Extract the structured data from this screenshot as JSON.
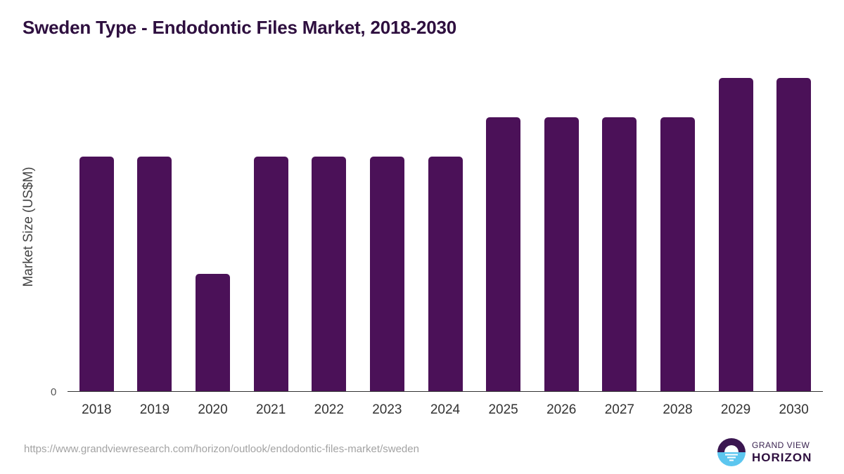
{
  "title": "Sweden Type - Endodontic Files Market, 2018-2030",
  "yaxis": {
    "label": "Market Size (US$M)",
    "zero_tick": "0"
  },
  "footer": {
    "url": "https://www.grandviewresearch.com/horizon/outlook/endodontic-files-market/sweden"
  },
  "logo": {
    "line1": "GRAND VIEW",
    "line2": "HORIZON",
    "dark": "#3a1650",
    "light": "#5cc6ef"
  },
  "colors": {
    "bar": "#4b1158",
    "title": "#2e0f3f"
  },
  "chart_data": {
    "type": "bar",
    "title": "Sweden Type - Endodontic Files Market, 2018-2030",
    "xlabel": "",
    "ylabel": "Market Size (US$M)",
    "categories": [
      "2018",
      "2019",
      "2020",
      "2021",
      "2022",
      "2023",
      "2024",
      "2025",
      "2026",
      "2027",
      "2028",
      "2029",
      "2030"
    ],
    "values": [
      0.6,
      0.6,
      0.3,
      0.6,
      0.6,
      0.6,
      0.6,
      0.7,
      0.7,
      0.7,
      0.7,
      0.8,
      0.8
    ],
    "ylim": [
      0,
      0.856
    ],
    "grid": false,
    "legend": null,
    "note": "Values are relative estimates; y-axis only labels 0."
  }
}
